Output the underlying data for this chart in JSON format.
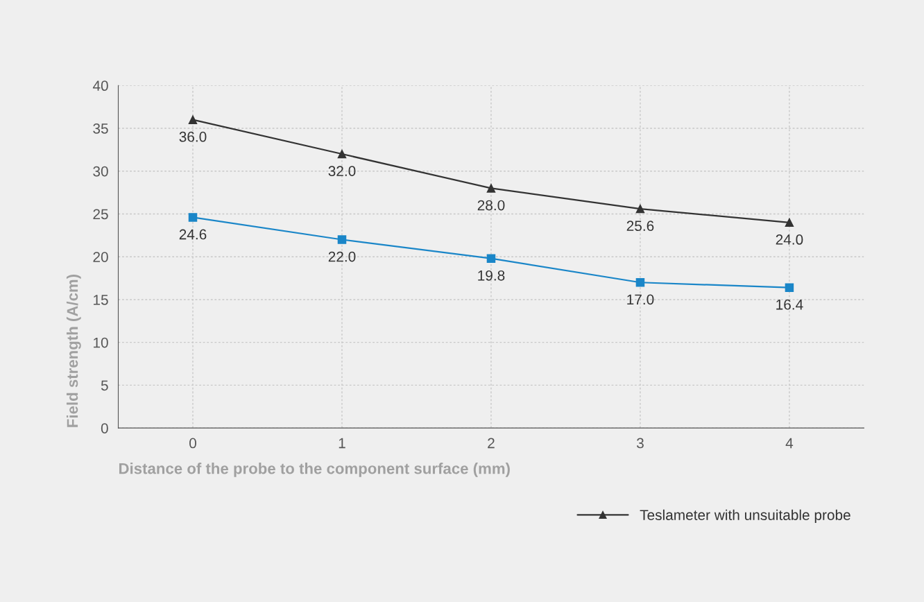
{
  "chart_data": {
    "type": "line",
    "xlabel": "Distance of the probe to the component surface (mm)",
    "ylabel": "Field strength (A/cm)",
    "x": [
      0,
      1,
      2,
      3,
      4
    ],
    "xlim": [
      -0.5,
      4.5
    ],
    "xticks": [
      0,
      1,
      2,
      3,
      4
    ],
    "ylim": [
      0,
      40
    ],
    "yticks": [
      0,
      5,
      10,
      15,
      20,
      25,
      30,
      35,
      40
    ],
    "grid": true,
    "legend": "bottom right",
    "line_style": "solid",
    "series": [
      {
        "color": "#1a86c8",
        "marker": "square",
        "values": [
          24.6,
          22.0,
          19.8,
          17.0,
          16.4
        ],
        "value_labels": [
          "24.6",
          "22.0",
          "19.8",
          "17.0",
          "16.4"
        ]
      },
      {
        "name": "Teslameter with unsuitable probe",
        "color": "#333333",
        "marker": "triangle",
        "values": [
          36.0,
          32.0,
          28.0,
          25.6,
          24.0
        ],
        "value_labels": [
          "36.0",
          "32.0",
          "28.0",
          "25.6",
          "24.0"
        ]
      }
    ]
  }
}
